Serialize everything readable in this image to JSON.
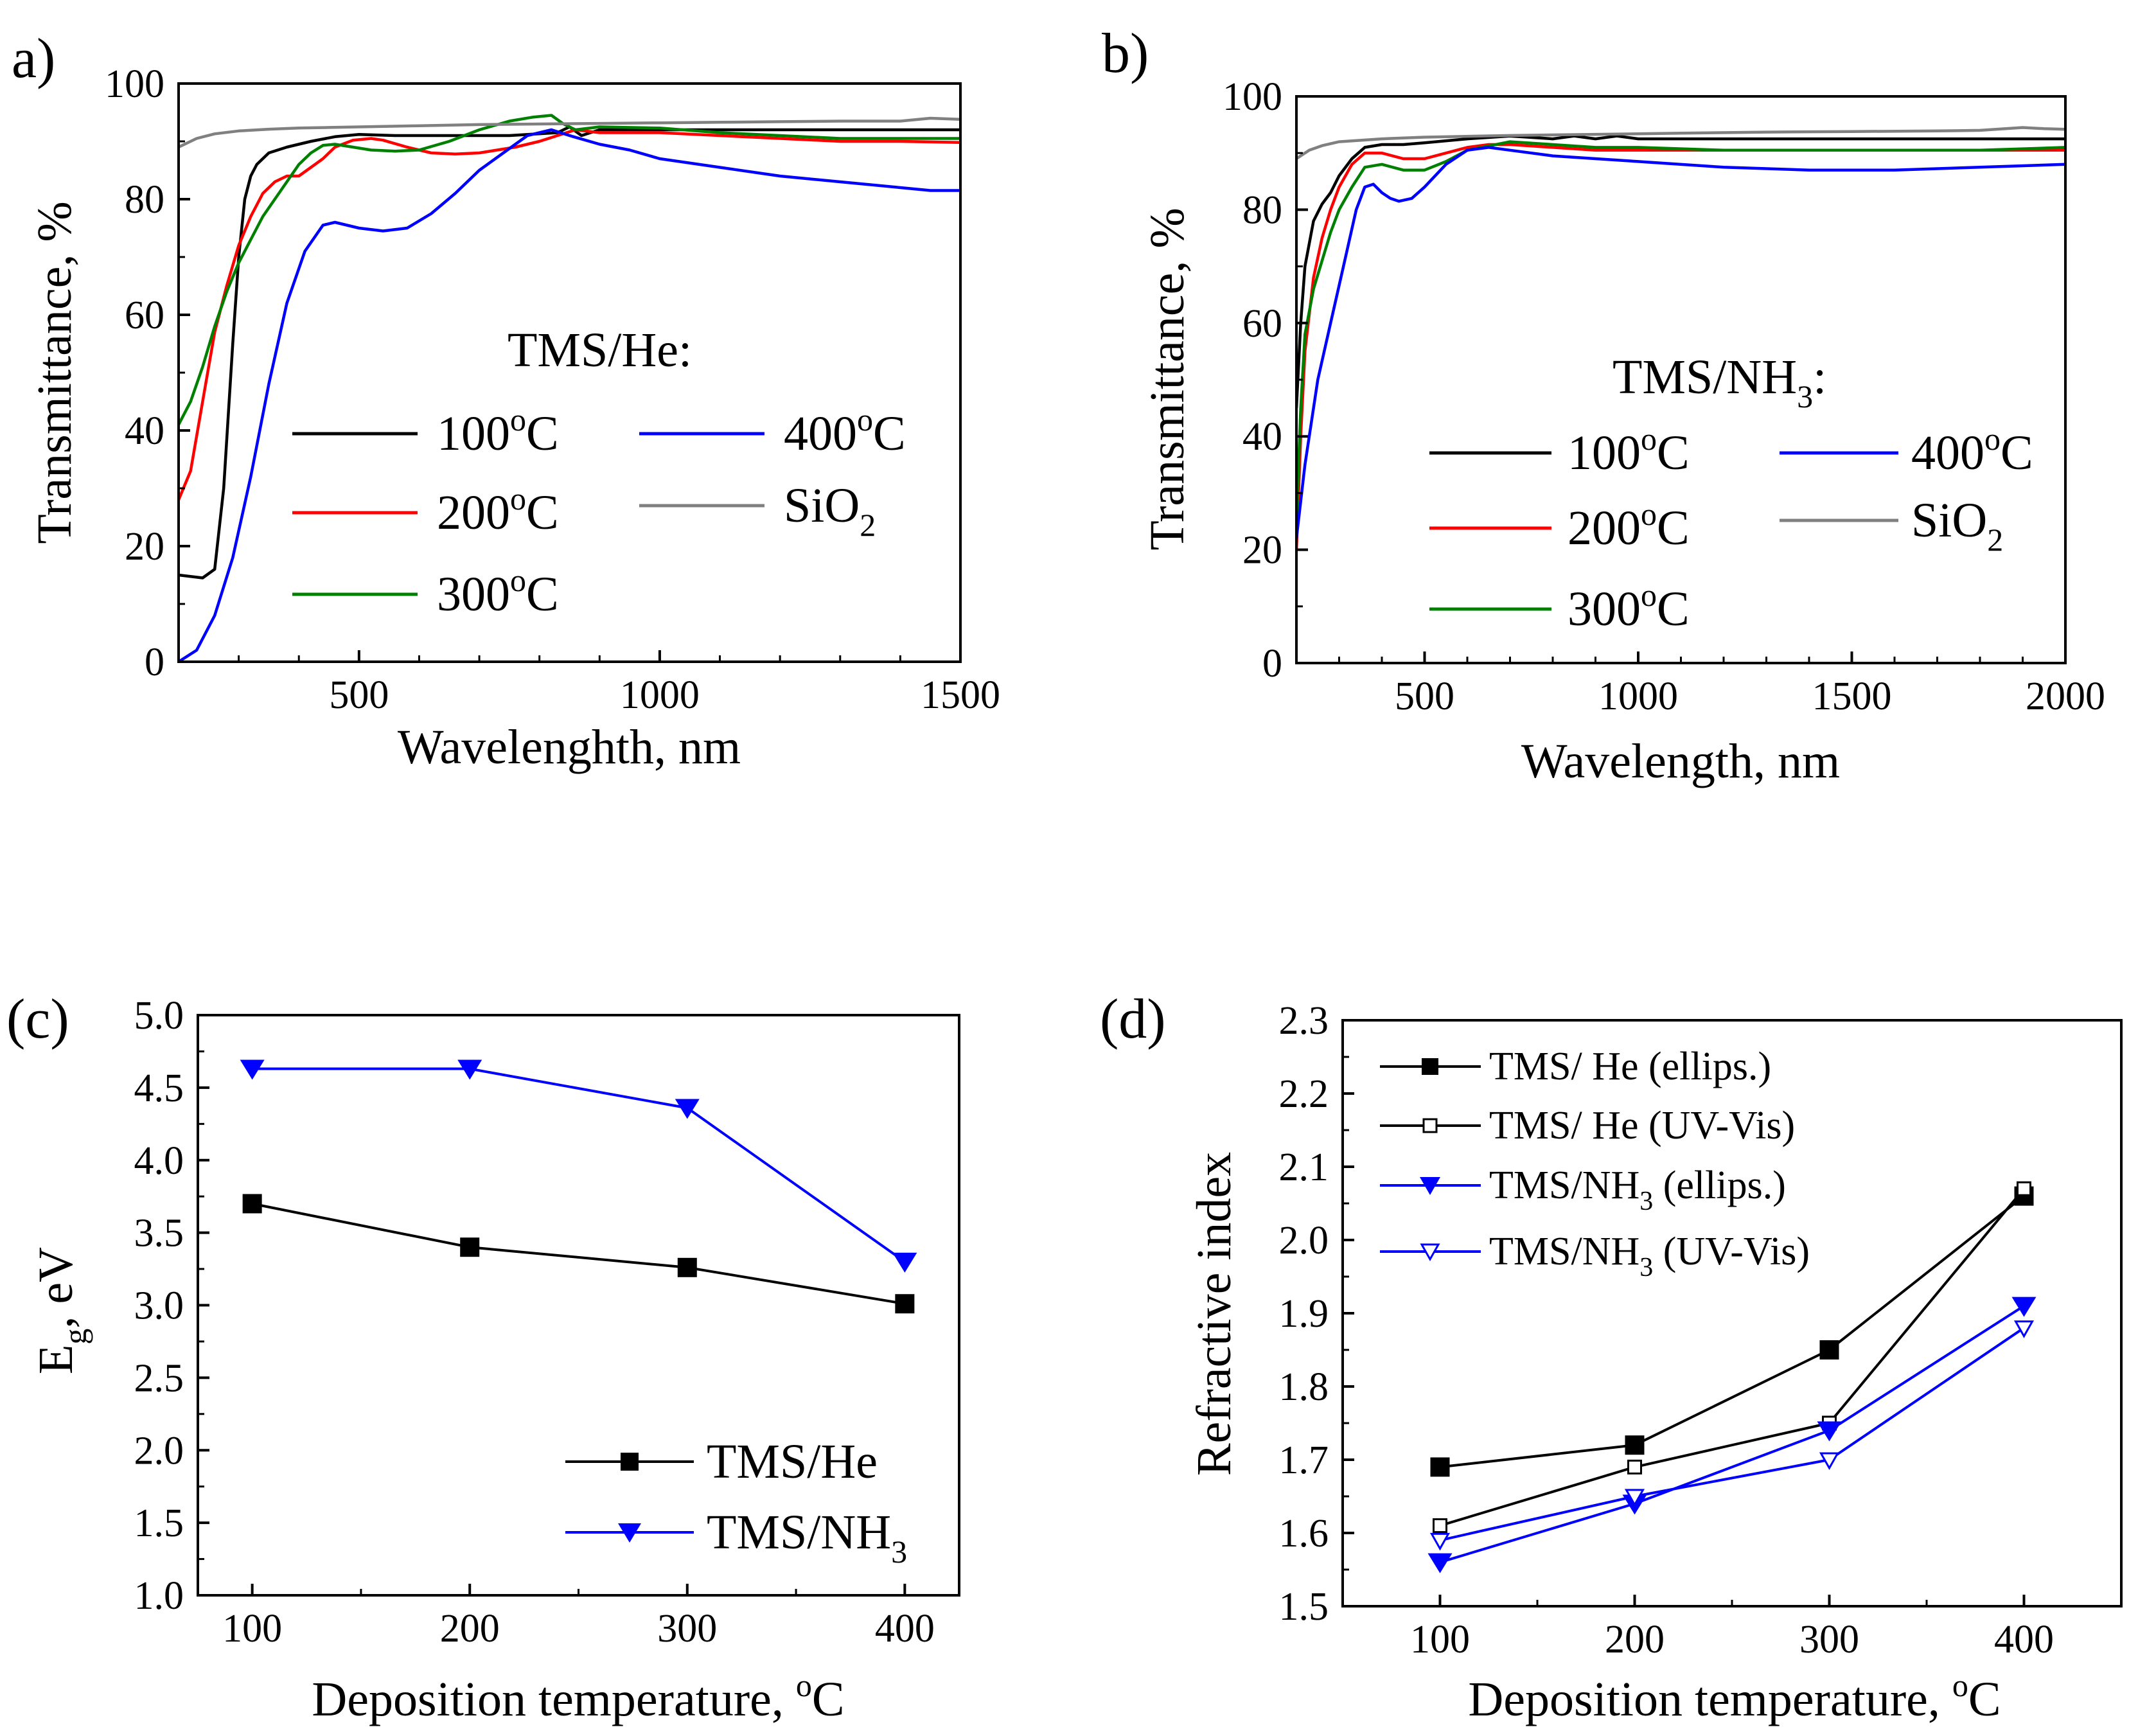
{
  "chart_data": [
    {
      "id": "a",
      "panel_label": "a)",
      "type": "line",
      "xlabel": "Wavelenghth, nm",
      "ylabel": "Transmittance, %",
      "xlim": [
        200,
        1500
      ],
      "ylim": [
        0,
        100
      ],
      "xticks": [
        500,
        1000,
        1500
      ],
      "yticks": [
        0,
        20,
        40,
        60,
        80,
        100
      ],
      "legend_title": "TMS/He:",
      "series": [
        {
          "name": "100°C",
          "label_main": "100",
          "label_sup": "o",
          "label_tail": "C",
          "label_sub": "",
          "color": "#000000",
          "x": [
            200,
            240,
            260,
            275,
            290,
            300,
            310,
            320,
            330,
            350,
            380,
            420,
            460,
            500,
            560,
            650,
            750,
            830,
            850,
            870,
            900,
            1000,
            1100,
            1200,
            1300,
            1400,
            1500
          ],
          "y": [
            15,
            14.5,
            16,
            30,
            55,
            70,
            80,
            84,
            86,
            88,
            89,
            90,
            90.8,
            91.2,
            91,
            91,
            91,
            91.5,
            92.5,
            91,
            92,
            92,
            92,
            92,
            92,
            92,
            92
          ]
        },
        {
          "name": "200°C",
          "label_main": "200",
          "label_sup": "o",
          "label_tail": "C",
          "label_sub": "",
          "color": "#ff0000",
          "x": [
            200,
            220,
            240,
            260,
            280,
            300,
            320,
            340,
            360,
            380,
            400,
            420,
            440,
            460,
            490,
            520,
            540,
            580,
            620,
            660,
            700,
            760,
            800,
            830,
            860,
            900,
            1000,
            1100,
            1200,
            1300,
            1400,
            1500
          ],
          "y": [
            28,
            33,
            45,
            57,
            65,
            72,
            77,
            81,
            83,
            84,
            84,
            85.5,
            87,
            89,
            90.2,
            90.5,
            90.2,
            89,
            88,
            87.8,
            88,
            89,
            90,
            91,
            92,
            91.5,
            91.5,
            91,
            90.5,
            90,
            90,
            89.8
          ]
        },
        {
          "name": "300°C",
          "label_main": "300",
          "label_sup": "o",
          "label_tail": "C",
          "label_sub": "",
          "color": "#008000",
          "x": [
            200,
            220,
            240,
            260,
            280,
            300,
            320,
            340,
            360,
            380,
            400,
            420,
            440,
            460,
            490,
            520,
            560,
            600,
            650,
            700,
            750,
            790,
            820,
            840,
            860,
            900,
            1000,
            1100,
            1200,
            1300,
            1400,
            1500
          ],
          "y": [
            41,
            45,
            51,
            58,
            64,
            69,
            73,
            77,
            80,
            83,
            86,
            88,
            89.3,
            89.5,
            89,
            88.5,
            88.3,
            88.5,
            90,
            92,
            93.5,
            94.2,
            94.5,
            93,
            92,
            92.5,
            92.3,
            91.5,
            91,
            90.5,
            90.5,
            90.5
          ]
        },
        {
          "name": "400°C",
          "label_main": "400",
          "label_sup": "o",
          "label_tail": "C",
          "label_sub": "",
          "color": "#0000ff",
          "x": [
            200,
            230,
            260,
            290,
            320,
            350,
            380,
            410,
            440,
            460,
            480,
            500,
            540,
            580,
            620,
            660,
            700,
            740,
            780,
            820,
            850,
            900,
            950,
            1000,
            1100,
            1200,
            1300,
            1400,
            1450,
            1500
          ],
          "y": [
            0,
            2,
            8,
            18,
            32,
            48,
            62,
            71,
            75.5,
            76,
            75.5,
            75,
            74.5,
            75,
            77.5,
            81,
            85,
            88,
            91,
            92,
            91,
            89.5,
            88.5,
            87,
            85.5,
            84,
            83,
            82,
            81.5,
            81.5
          ]
        },
        {
          "name": "SiO2",
          "label_main": "SiO",
          "label_sup": "",
          "label_tail": "",
          "label_sub": "2",
          "color": "#808080",
          "x": [
            200,
            230,
            260,
            300,
            350,
            400,
            450,
            500,
            600,
            700,
            800,
            900,
            1000,
            1100,
            1200,
            1300,
            1400,
            1450,
            1500
          ],
          "y": [
            89,
            90.5,
            91.3,
            91.8,
            92.1,
            92.3,
            92.4,
            92.5,
            92.7,
            92.9,
            93,
            93.1,
            93.2,
            93.3,
            93.4,
            93.5,
            93.5,
            94,
            93.8
          ]
        }
      ]
    },
    {
      "id": "b",
      "panel_label": "b)",
      "type": "line",
      "xlabel": "Wavelength, nm",
      "ylabel": "Transmittance, %",
      "xlim": [
        200,
        2000
      ],
      "ylim": [
        0,
        100
      ],
      "xticks": [
        500,
        1000,
        1500,
        2000
      ],
      "yticks": [
        0,
        20,
        40,
        60,
        80,
        100
      ],
      "legend_title_main": "TMS/NH",
      "legend_title_sub": "3",
      "legend_title_tail": ":",
      "series": [
        {
          "name": "100°C",
          "label_main": "100",
          "label_sup": "o",
          "label_tail": "C",
          "label_sub": "",
          "color": "#000000",
          "x": [
            200,
            210,
            220,
            240,
            260,
            280,
            300,
            330,
            360,
            400,
            450,
            500,
            600,
            700,
            800,
            850,
            900,
            950,
            1000,
            1200,
            1400,
            1600,
            1800,
            2000
          ],
          "y": [
            45,
            60,
            70,
            78,
            81,
            83,
            86,
            89,
            91,
            91.5,
            91.5,
            91.8,
            92.5,
            93,
            92.5,
            93,
            92.5,
            93,
            92.5,
            92.5,
            92.5,
            92.5,
            92.5,
            92.5
          ]
        },
        {
          "name": "200°C",
          "label_main": "200",
          "label_sup": "o",
          "label_tail": "C",
          "label_sub": "",
          "color": "#ff0000",
          "x": [
            200,
            210,
            220,
            240,
            260,
            280,
            300,
            330,
            360,
            400,
            450,
            500,
            550,
            600,
            650,
            700,
            800,
            900,
            1000,
            1200,
            1400,
            1600,
            1800,
            2000
          ],
          "y": [
            20,
            40,
            55,
            68,
            75,
            80,
            84,
            88,
            90,
            90,
            89,
            89,
            90,
            91,
            91.5,
            91.5,
            91,
            90.5,
            90.5,
            90.5,
            90.5,
            90.5,
            90.5,
            90.5
          ]
        },
        {
          "name": "300°C",
          "label_main": "300",
          "label_sup": "o",
          "label_tail": "C",
          "label_sub": "",
          "color": "#008000",
          "x": [
            200,
            210,
            220,
            240,
            260,
            280,
            300,
            330,
            360,
            400,
            450,
            500,
            550,
            600,
            700,
            800,
            900,
            1000,
            1200,
            1400,
            1600,
            1800,
            2000
          ],
          "y": [
            25,
            45,
            58,
            66,
            71,
            76,
            80,
            84,
            87.5,
            88,
            87,
            87,
            88.5,
            90.5,
            92,
            91.5,
            91,
            91,
            90.5,
            90.5,
            90.5,
            90.5,
            91
          ]
        },
        {
          "name": "400°C",
          "label_main": "400",
          "label_sup": "o",
          "label_tail": "C",
          "label_sub": "",
          "color": "#0000ff",
          "x": [
            200,
            220,
            250,
            280,
            310,
            340,
            360,
            380,
            400,
            420,
            440,
            470,
            500,
            550,
            600,
            650,
            700,
            750,
            800,
            900,
            1000,
            1200,
            1400,
            1600,
            1800,
            2000
          ],
          "y": [
            22,
            35,
            50,
            60,
            70,
            80,
            84,
            84.5,
            83,
            82,
            81.5,
            82,
            84,
            88,
            90.5,
            91,
            90.5,
            90,
            89.5,
            89,
            88.5,
            87.5,
            87,
            87,
            87.5,
            88
          ]
        },
        {
          "name": "SiO2",
          "label_main": "SiO",
          "label_sup": "",
          "label_tail": "",
          "label_sub": "2",
          "color": "#808080",
          "x": [
            200,
            230,
            260,
            300,
            400,
            500,
            700,
            900,
            1100,
            1300,
            1500,
            1700,
            1800,
            1900,
            1950,
            2000
          ],
          "y": [
            89,
            90.5,
            91.3,
            92,
            92.5,
            92.8,
            93.1,
            93.3,
            93.5,
            93.7,
            93.8,
            93.9,
            94,
            94.5,
            94.3,
            94.2
          ]
        }
      ]
    },
    {
      "id": "c",
      "panel_label": "(c)",
      "type": "line",
      "xlabel_main": "Deposition temperature, ",
      "xlabel_sup": "o",
      "xlabel_tail": "C",
      "ylabel_main": "E",
      "ylabel_sub": "g",
      "ylabel_tail": ", eV",
      "xlim": [
        75,
        425
      ],
      "ylim": [
        1.0,
        5.0
      ],
      "xticks": [
        100,
        200,
        300,
        400
      ],
      "yticks": [
        1.0,
        1.5,
        2.0,
        2.5,
        3.0,
        3.5,
        4.0,
        4.5,
        5.0
      ],
      "ytick_labels": [
        "1.0",
        "1.5",
        "2.0",
        "2.5",
        "3.0",
        "3.5",
        "4.0",
        "4.5",
        "5.0"
      ],
      "series": [
        {
          "name": "TMS/He",
          "label_main": "TMS/He",
          "label_sub": "",
          "color": "#000000",
          "marker": "square-filled",
          "x": [
            100,
            200,
            300,
            400
          ],
          "y": [
            3.7,
            3.4,
            3.26,
            3.01
          ]
        },
        {
          "name": "TMS/NH3",
          "label_main": "TMS/NH",
          "label_sub": "3",
          "color": "#0000ff",
          "marker": "triangle-down-filled",
          "x": [
            100,
            200,
            300,
            400
          ],
          "y": [
            4.63,
            4.63,
            4.36,
            3.3
          ]
        }
      ]
    },
    {
      "id": "d",
      "panel_label": "(d)",
      "type": "line",
      "xlabel_main": "Deposition temperature, ",
      "xlabel_sup": "o",
      "xlabel_tail": "C",
      "ylabel": "Refractive index",
      "xlim": [
        50,
        450
      ],
      "ylim": [
        1.5,
        2.3
      ],
      "xticks": [
        100,
        200,
        300,
        400
      ],
      "yticks": [
        1.5,
        1.6,
        1.7,
        1.8,
        1.9,
        2.0,
        2.1,
        2.2,
        2.3
      ],
      "ytick_labels": [
        "1.5",
        "1.6",
        "1.7",
        "1.8",
        "1.9",
        "2.0",
        "2.1",
        "2.2",
        "2.3"
      ],
      "series": [
        {
          "name": "TMS/ He (ellips.)",
          "label_main": "TMS/ He (ellips.)",
          "label_sub": "",
          "label_tail": "",
          "color": "#000000",
          "marker": "square-filled",
          "x": [
            100,
            200,
            300,
            400
          ],
          "y": [
            1.69,
            1.72,
            1.85,
            2.06
          ]
        },
        {
          "name": "TMS/ He (UV-Vis)",
          "label_main": "TMS/ He (UV-Vis)",
          "label_sub": "",
          "label_tail": "",
          "color": "#000000",
          "marker": "square-open",
          "x": [
            100,
            200,
            300,
            400
          ],
          "y": [
            1.61,
            1.69,
            1.75,
            2.07
          ]
        },
        {
          "name": "TMS/NH3 (ellips.)",
          "label_main": "TMS/NH",
          "label_sub": "3",
          "label_tail": " (ellips.)",
          "color": "#0000ff",
          "marker": "triangle-down-filled",
          "x": [
            100,
            200,
            300,
            400
          ],
          "y": [
            1.56,
            1.64,
            1.74,
            1.91
          ]
        },
        {
          "name": "TMS/NH3 (UV-Vis)",
          "label_main": "TMS/NH",
          "label_sub": "3",
          "label_tail": " (UV-Vis)",
          "color": "#0000ff",
          "marker": "triangle-down-open",
          "x": [
            100,
            200,
            300,
            400
          ],
          "y": [
            1.59,
            1.65,
            1.7,
            1.88
          ]
        }
      ]
    }
  ]
}
